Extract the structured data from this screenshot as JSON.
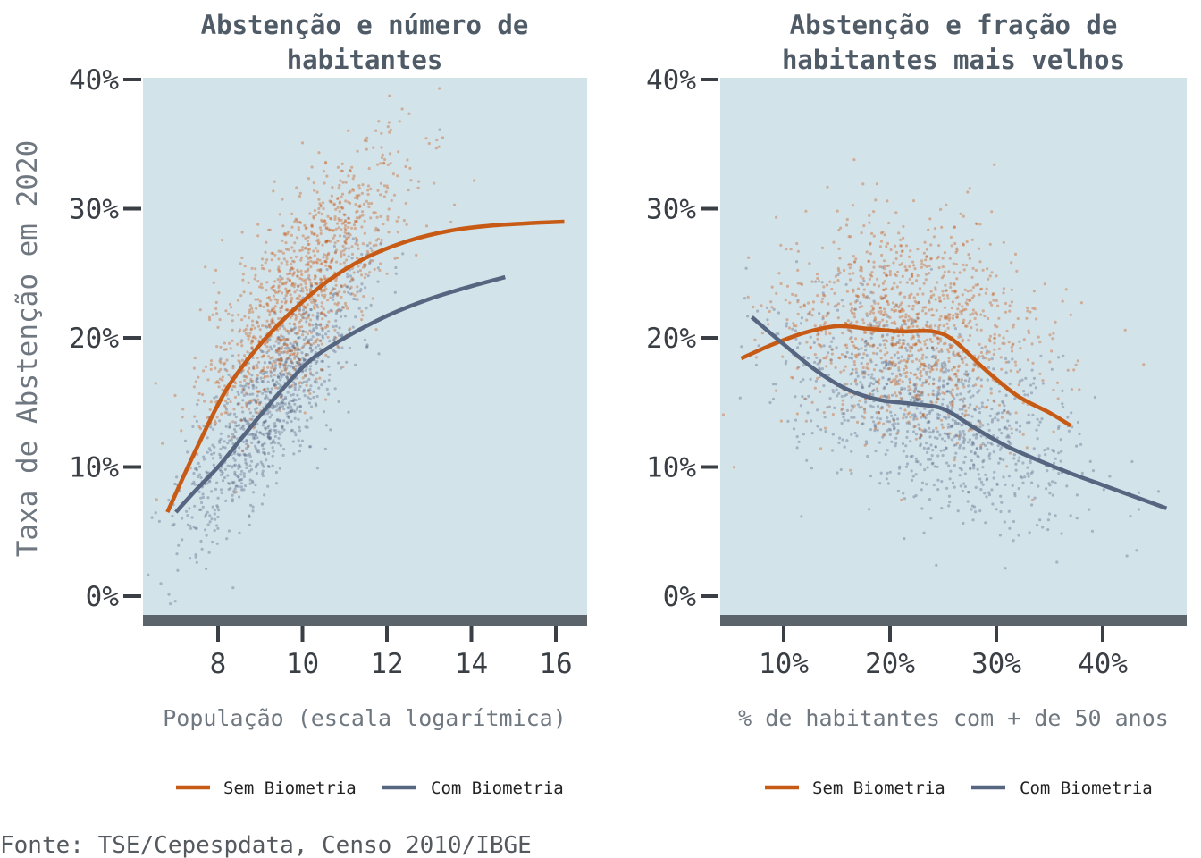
{
  "colors": {
    "sem_biometria": "#c75a14",
    "com_biometria": "#566580",
    "panel_bg": "#d3e3ea",
    "axis_bar": "#5b646b",
    "tick_text": "#3a3f45"
  },
  "source": "Fonte: TSE/Cepespdata, Censo 2010/IBGE",
  "chart_data": [
    {
      "type": "scatter",
      "title_line1": "Abstenção e número de",
      "title_line2": "habitantes",
      "xlabel": "População (escala logarítmica)",
      "ylabel": "Taxa de Abstenção em 2020",
      "xlim": [
        6.5,
        17
      ],
      "ylim": [
        -0.02,
        0.405
      ],
      "xticks": [
        8,
        10,
        12,
        14,
        16
      ],
      "xtick_labels": [
        "8",
        "10",
        "12",
        "14",
        "16"
      ],
      "yticks": [
        0,
        0.1,
        0.2,
        0.3,
        0.4
      ],
      "ytick_labels": [
        "0%",
        "10%",
        "20%",
        "30%",
        "40%"
      ],
      "grid": false,
      "legend_position": "bottom",
      "series": [
        {
          "name": "Sem Biometria",
          "line_x": [
            6.8,
            7.5,
            8.2,
            9.0,
            9.8,
            10.6,
            11.5,
            12.5,
            13.5,
            14.5,
            15.5,
            16.2
          ],
          "line_y": [
            0.065,
            0.115,
            0.16,
            0.195,
            0.222,
            0.244,
            0.262,
            0.275,
            0.283,
            0.287,
            0.289,
            0.29
          ],
          "points": {
            "x_center": 10.0,
            "x_spread": 1.2,
            "slope": 0.035,
            "y_at_center": 0.24,
            "noise": 0.035,
            "count": 1100
          }
        },
        {
          "name": "Com Biometria",
          "line_x": [
            7.0,
            7.5,
            8.0,
            8.5,
            9.0,
            9.6,
            10.2,
            11.0,
            12.0,
            13.0,
            14.0,
            14.8
          ],
          "line_y": [
            0.065,
            0.083,
            0.1,
            0.12,
            0.14,
            0.163,
            0.183,
            0.2,
            0.217,
            0.23,
            0.24,
            0.247
          ],
          "points": {
            "x_center": 9.3,
            "x_spread": 1.1,
            "slope": 0.04,
            "y_at_center": 0.15,
            "noise": 0.03,
            "count": 1000
          }
        }
      ]
    },
    {
      "type": "scatter",
      "title_line1": "Abstenção e fração de",
      "title_line2": "habitantes mais velhos",
      "xlabel": "% de habitantes com + de 50 anos",
      "ylabel": "",
      "xlim": [
        0.04,
        0.465
      ],
      "ylim": [
        -0.02,
        0.405
      ],
      "xticks": [
        0.1,
        0.2,
        0.3,
        0.4
      ],
      "xtick_labels": [
        "10%",
        "20%",
        "30%",
        "40%"
      ],
      "yticks": [
        0,
        0.1,
        0.2,
        0.3,
        0.4
      ],
      "ytick_labels": [
        "0%",
        "10%",
        "20%",
        "30%",
        "40%"
      ],
      "grid": false,
      "legend_position": "bottom",
      "series": [
        {
          "name": "Sem Biometria",
          "line_x": [
            0.06,
            0.09,
            0.12,
            0.15,
            0.18,
            0.21,
            0.24,
            0.26,
            0.29,
            0.32,
            0.35,
            0.37
          ],
          "line_y": [
            0.184,
            0.195,
            0.204,
            0.209,
            0.207,
            0.205,
            0.205,
            0.198,
            0.175,
            0.155,
            0.142,
            0.132
          ],
          "points": {
            "x_center": 0.22,
            "x_spread": 0.06,
            "slope": -0.1,
            "y_at_center": 0.21,
            "noise": 0.04,
            "count": 1100
          }
        },
        {
          "name": "Com Biometria",
          "line_x": [
            0.07,
            0.1,
            0.13,
            0.16,
            0.19,
            0.22,
            0.25,
            0.28,
            0.31,
            0.34,
            0.37,
            0.4,
            0.43,
            0.46
          ],
          "line_y": [
            0.216,
            0.195,
            0.175,
            0.16,
            0.152,
            0.149,
            0.145,
            0.13,
            0.116,
            0.105,
            0.095,
            0.086,
            0.077,
            0.068
          ],
          "points": {
            "x_center": 0.24,
            "x_spread": 0.07,
            "slope": -0.3,
            "y_at_center": 0.14,
            "noise": 0.035,
            "count": 1000
          }
        }
      ]
    }
  ]
}
